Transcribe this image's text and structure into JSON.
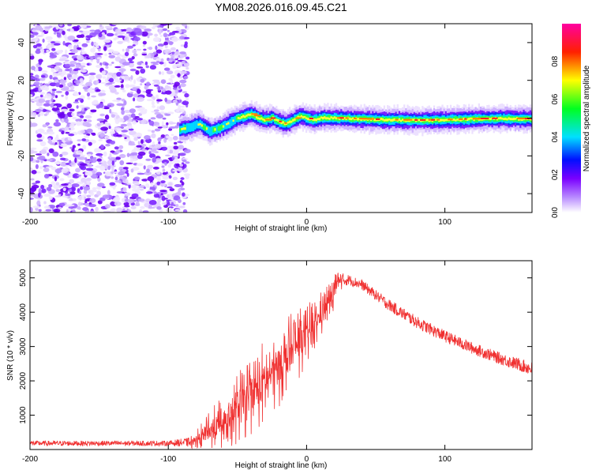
{
  "title": "YM08.2026.016.09.45.C21",
  "chart_data": [
    {
      "type": "heatmap",
      "title": "YM08.2026.016.09.45.C21",
      "xlabel": "Height of straight line (km)",
      "ylabel": "Frequency (Hz)",
      "xlim": [
        -200,
        163
      ],
      "ylim": [
        -50,
        50
      ],
      "xticks": [
        -200,
        -100,
        0,
        100
      ],
      "yticks": [
        -40,
        -20,
        0,
        20,
        40
      ],
      "noise_region_x": [
        -200,
        -86
      ],
      "signal_track": {
        "x": [
          -92,
          -85,
          -78,
          -70,
          -62,
          -55,
          -50,
          -45,
          -40,
          -35,
          -30,
          -25,
          -20,
          -15,
          -10,
          -5,
          0,
          5,
          10,
          20,
          40,
          60,
          80,
          100,
          120,
          140,
          163
        ],
        "freq": [
          -6,
          -5,
          -3,
          -7,
          -5,
          -2,
          0,
          1,
          2,
          0,
          -1,
          0,
          -2,
          -3,
          -1,
          1,
          0,
          -1,
          0,
          0,
          -0.5,
          -1,
          -1.2,
          -1,
          -0.5,
          -0.2,
          -0.5
        ]
      },
      "colorbar": {
        "label": "Normalized spectral amplitude",
        "range": [
          0,
          1
        ],
        "ticks": [
          "0.0",
          "0.2",
          "0.4",
          "0.6",
          "0.8"
        ],
        "colors": [
          "#ffffff",
          "#7a00ff",
          "#0000ff",
          "#00e0ff",
          "#00ff00",
          "#ffff00",
          "#ff0000",
          "#ff00a0"
        ]
      }
    },
    {
      "type": "line",
      "xlabel": "Height of straight line (km)",
      "ylabel": "SNR (10 * v/v)",
      "xlim": [
        -200,
        163
      ],
      "ylim": [
        0,
        5500
      ],
      "xticks": [
        -200,
        -100,
        0,
        100
      ],
      "yticks": [
        1000,
        2000,
        3000,
        4000,
        5000
      ],
      "color": "#f03030",
      "envelope": {
        "x": [
          -200,
          -150,
          -100,
          -82,
          -70,
          -60,
          -50,
          -40,
          -30,
          -20,
          -10,
          0,
          10,
          20,
          25,
          30,
          40,
          50,
          60,
          80,
          100,
          120,
          140,
          163
        ],
        "base": [
          180,
          180,
          180,
          220,
          500,
          800,
          1200,
          1600,
          2000,
          2400,
          2900,
          3300,
          3900,
          4600,
          4900,
          4950,
          4800,
          4500,
          4200,
          3700,
          3300,
          2950,
          2650,
          2350
        ],
        "jitter": [
          150,
          150,
          150,
          300,
          900,
          1200,
          1500,
          1700,
          1800,
          1700,
          1600,
          1300,
          1000,
          700,
          500,
          300,
          300,
          300,
          350,
          350,
          350,
          350,
          350,
          400
        ]
      }
    }
  ]
}
